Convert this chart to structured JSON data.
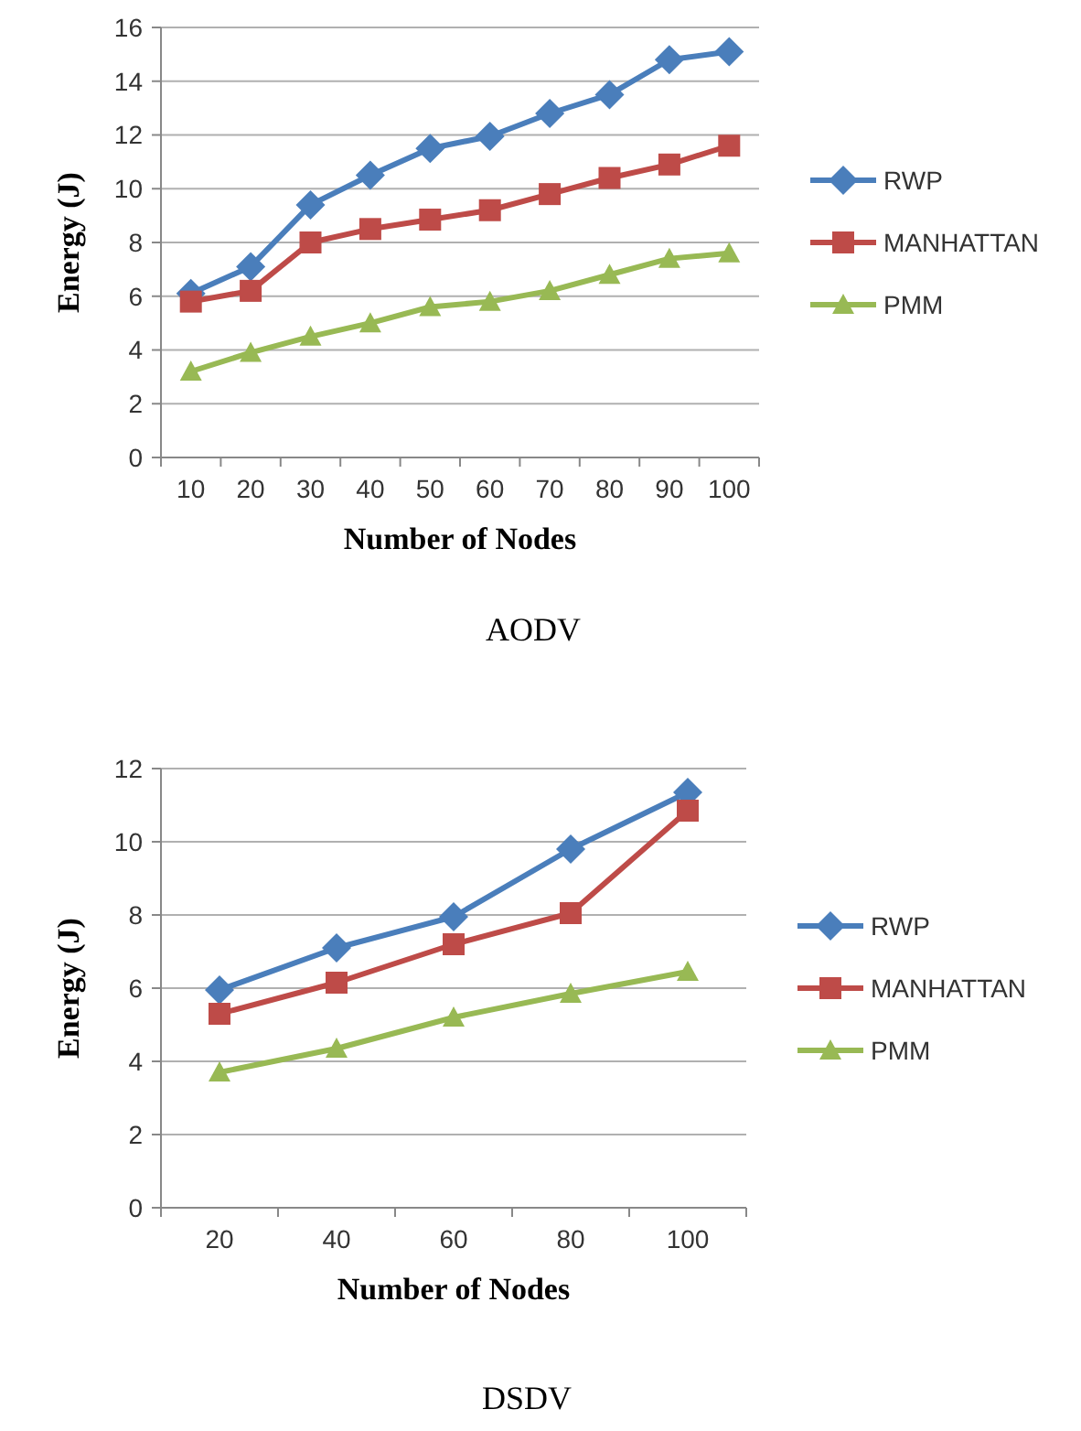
{
  "chart_data": [
    {
      "type": "line",
      "title": "AODV",
      "xlabel": "Number of Nodes",
      "ylabel": "Energy (J)",
      "categories": [
        "10",
        "20",
        "30",
        "40",
        "50",
        "60",
        "70",
        "80",
        "90",
        "100"
      ],
      "series": [
        {
          "name": "RWP",
          "color": "#4a7ebb",
          "marker": "diamond",
          "values": [
            6.1,
            7.1,
            9.4,
            10.5,
            11.5,
            11.95,
            12.8,
            13.5,
            14.8,
            15.1
          ]
        },
        {
          "name": "MANHATTAN",
          "color": "#be4b48",
          "marker": "square",
          "values": [
            5.8,
            6.2,
            8.0,
            8.5,
            8.85,
            9.2,
            9.8,
            10.4,
            10.9,
            11.6
          ]
        },
        {
          "name": "PMM",
          "color": "#98b954",
          "marker": "triangle",
          "values": [
            3.2,
            3.9,
            4.5,
            5.0,
            5.6,
            5.8,
            6.2,
            6.8,
            7.4,
            7.6
          ]
        }
      ],
      "ylim": [
        0,
        16
      ],
      "yticks": [
        0,
        2,
        4,
        6,
        8,
        10,
        12,
        14,
        16
      ],
      "grid": "y",
      "legend": "right"
    },
    {
      "type": "line",
      "title": "DSDV",
      "xlabel": "Number of Nodes",
      "ylabel": "Energy (J)",
      "categories": [
        "20",
        "40",
        "60",
        "80",
        "100"
      ],
      "series": [
        {
          "name": "RWP",
          "color": "#4a7ebb",
          "marker": "diamond",
          "values": [
            5.95,
            7.1,
            7.95,
            9.8,
            11.35
          ]
        },
        {
          "name": "MANHATTAN",
          "color": "#be4b48",
          "marker": "square",
          "values": [
            5.3,
            6.15,
            7.2,
            8.05,
            10.85
          ]
        },
        {
          "name": "PMM",
          "color": "#98b954",
          "marker": "triangle",
          "values": [
            3.7,
            4.35,
            5.2,
            5.85,
            6.45
          ]
        }
      ],
      "ylim": [
        0,
        12
      ],
      "yticks": [
        0,
        2,
        4,
        6,
        8,
        10,
        12
      ],
      "grid": "y",
      "legend": "right"
    }
  ]
}
